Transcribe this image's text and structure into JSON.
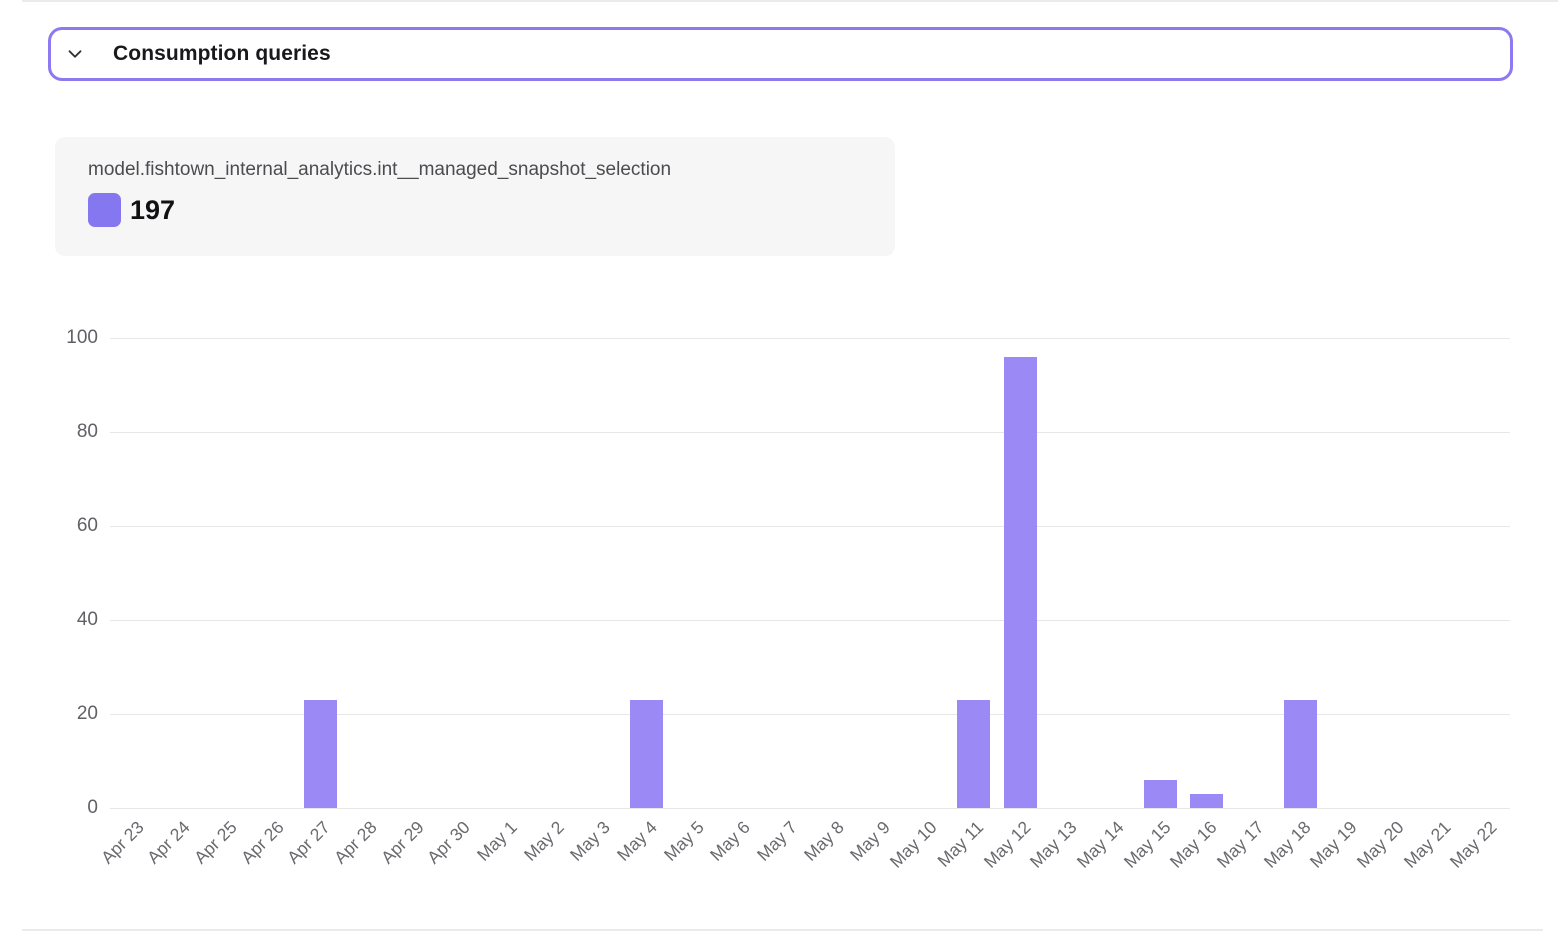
{
  "section": {
    "title": "Consumption queries",
    "border_color": "#8b7af2"
  },
  "legend": {
    "model_name": "model.fishtown_internal_analytics.int__managed_snapshot_selection",
    "total": "197",
    "swatch_color": "#8577f0"
  },
  "chart_data": {
    "type": "bar",
    "title": "",
    "series_name": "model.fishtown_internal_analytics.int__managed_snapshot_selection",
    "series_total": 197,
    "bar_color": "#9b8af5",
    "grid": true,
    "legend_position": "top-left",
    "xlabel": "",
    "ylabel": "",
    "ylim": [
      0,
      100
    ],
    "yticks": [
      0,
      20,
      40,
      60,
      80,
      100
    ],
    "categories": [
      "Apr 23",
      "Apr 24",
      "Apr 25",
      "Apr 26",
      "Apr 27",
      "Apr 28",
      "Apr 29",
      "Apr 30",
      "May 1",
      "May 2",
      "May 3",
      "May 4",
      "May 5",
      "May 6",
      "May 7",
      "May 8",
      "May 9",
      "May 10",
      "May 11",
      "May 12",
      "May 13",
      "May 14",
      "May 15",
      "May 16",
      "May 17",
      "May 18",
      "May 19",
      "May 20",
      "May 21",
      "May 22"
    ],
    "values": [
      0,
      0,
      0,
      0,
      23,
      0,
      0,
      0,
      0,
      0,
      0,
      23,
      0,
      0,
      0,
      0,
      0,
      0,
      23,
      96,
      0,
      0,
      6,
      3,
      0,
      23,
      0,
      0,
      0,
      0
    ]
  }
}
